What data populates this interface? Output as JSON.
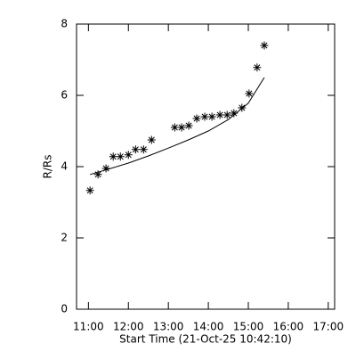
{
  "chart_data": {
    "type": "scatter",
    "xlabel": "Start Time (21-Oct-25 10:42:10)",
    "ylabel": "R/Rs",
    "xlim": [
      10.7028,
      17.16
    ],
    "xticks": [
      {
        "value": 11,
        "label": "11:00"
      },
      {
        "value": 12,
        "label": "12:00"
      },
      {
        "value": 13,
        "label": "13:00"
      },
      {
        "value": 14,
        "label": "14:00"
      },
      {
        "value": 15,
        "label": "15:00"
      },
      {
        "value": 16,
        "label": "16:00"
      },
      {
        "value": 17,
        "label": "17:00"
      }
    ],
    "ylim": [
      0,
      8
    ],
    "yticks": [
      0,
      2,
      4,
      6,
      8
    ],
    "series": [
      {
        "type": "scatter",
        "color": "#000000",
        "x": [
          11.04,
          11.24,
          11.44,
          11.62,
          11.8,
          12.0,
          12.18,
          12.38,
          12.58,
          13.16,
          13.33,
          13.51,
          13.71,
          13.91,
          14.09,
          14.29,
          14.47,
          14.64,
          14.84,
          15.02,
          15.22,
          15.4
        ],
        "values": [
          3.33,
          3.78,
          3.95,
          4.28,
          4.28,
          4.33,
          4.48,
          4.48,
          4.75,
          5.1,
          5.1,
          5.15,
          5.35,
          5.4,
          5.4,
          5.45,
          5.45,
          5.5,
          5.65,
          6.05,
          6.78,
          7.4
        ]
      },
      {
        "type": "line",
        "color": "#000000",
        "x": [
          11.04,
          11.5,
          12.0,
          12.5,
          13.0,
          13.5,
          14.0,
          14.5,
          15.0,
          15.4
        ],
        "values": [
          3.78,
          3.93,
          4.1,
          4.3,
          4.52,
          4.75,
          5.0,
          5.32,
          5.78,
          6.5
        ]
      }
    ]
  }
}
